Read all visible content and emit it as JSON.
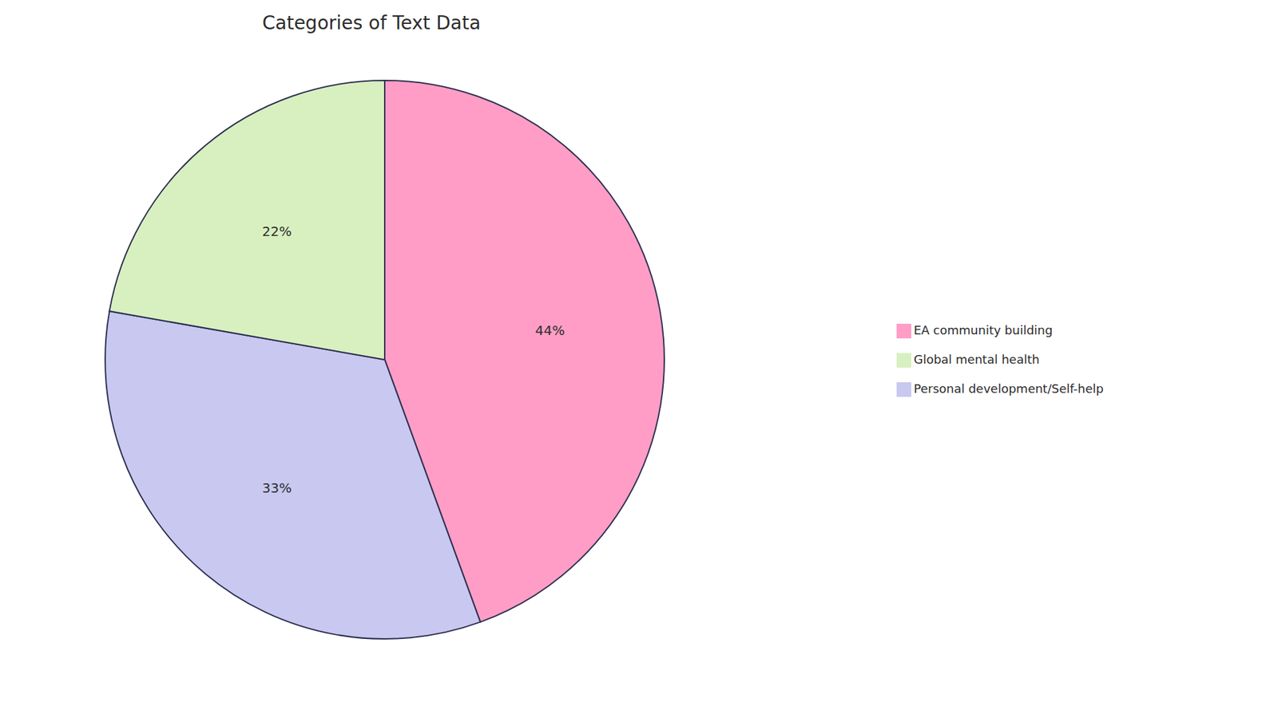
{
  "chart_data": {
    "type": "pie",
    "title": "Categories of Text Data",
    "categories": [
      "EA community building",
      "Personal development/Self-help",
      "Global mental health"
    ],
    "values": [
      44,
      33,
      22
    ],
    "value_labels": [
      "44%",
      "33%",
      "22%"
    ],
    "colors": [
      "#FF9DC6",
      "#C8C8F0",
      "#D8F0C0"
    ],
    "data_labels": true,
    "legend": "right"
  }
}
